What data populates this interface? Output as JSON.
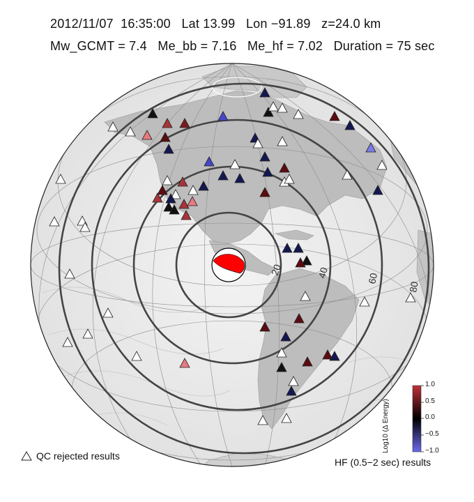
{
  "header": {
    "date": "2012/11/07",
    "time": "16:35:00",
    "lat": "Lat 13.99",
    "lon": "Lon −91.89",
    "depth": "z=24.0 km",
    "mw_gcmt": "Mw_GCMT = 7.4",
    "me_bb": "Me_bb = 7.16",
    "me_hf": "Me_hf = 7.02",
    "duration": "Duration = 75 sec"
  },
  "rings": {
    "labels": [
      "20",
      "40",
      "60",
      "80"
    ]
  },
  "legend": {
    "qc_label": "QC rejected results",
    "hf_label": "HF (0.5−2 sec) results"
  },
  "colorbar": {
    "title": "Log10 (Δ Energy)",
    "ticks": [
      "1.0",
      "0.5",
      "0.0",
      "−0.5",
      "−1.0"
    ],
    "colors": {
      "high": "#c0303a",
      "mid": "#000000",
      "low": "#6a6aee"
    }
  },
  "mechanism": {
    "fill": "#ff0000"
  },
  "stations_note": "triangles colored by log10 delta energy; white = QC rejected"
}
